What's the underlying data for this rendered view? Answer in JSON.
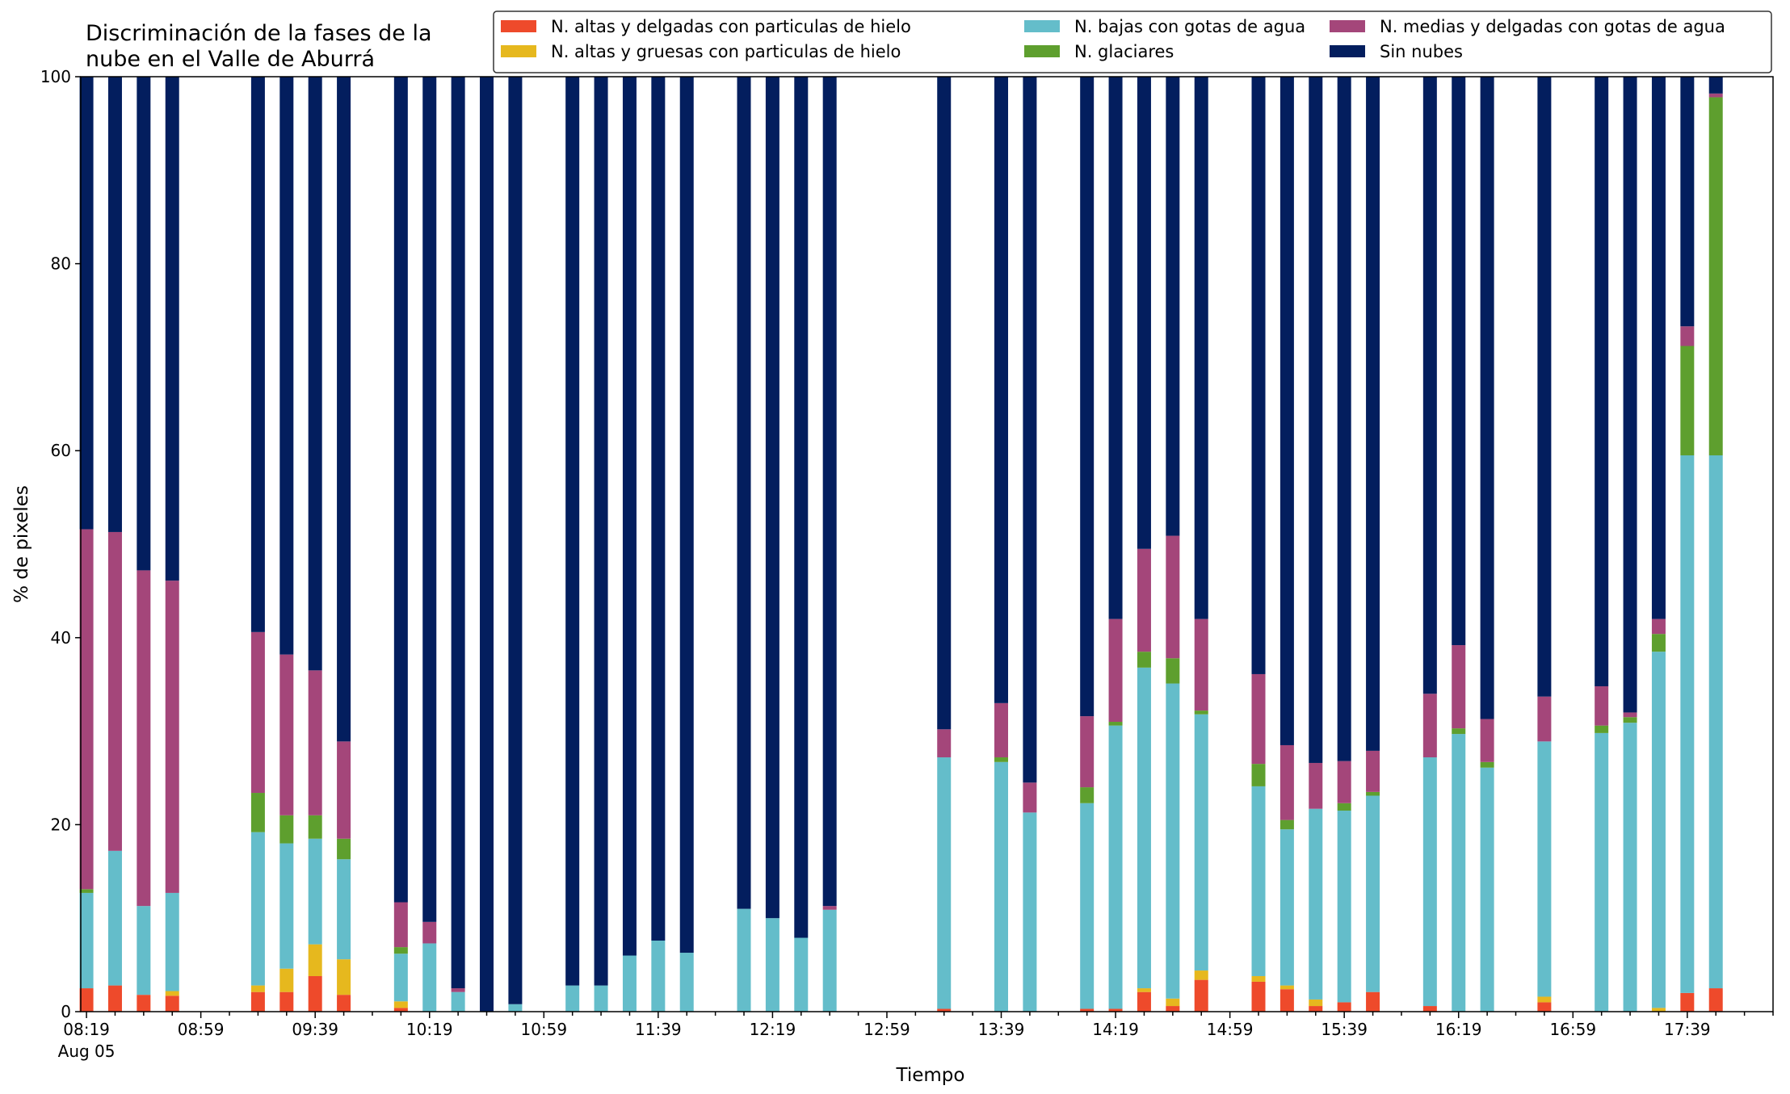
{
  "chart_data": {
    "type": "bar",
    "stacked": true,
    "title_lines": [
      "Discriminación de la fases de la",
      "nube en el Valle de Aburrá"
    ],
    "xlabel": "Tiempo",
    "ylabel": "% de pixeles",
    "ylim": [
      0,
      100
    ],
    "yticks": [
      "0",
      "20",
      "40",
      "60",
      "80",
      "100"
    ],
    "grid": false,
    "legend_placement": "top-right",
    "xlim_minutes": [
      -2,
      590
    ],
    "xticks": [
      {
        "minute": 0,
        "label": "08:19",
        "sublabel": "Aug 05"
      },
      {
        "minute": 40,
        "label": "08:59"
      },
      {
        "minute": 80,
        "label": "09:39"
      },
      {
        "minute": 120,
        "label": "10:19"
      },
      {
        "minute": 160,
        "label": "10:59"
      },
      {
        "minute": 200,
        "label": "11:39"
      },
      {
        "minute": 240,
        "label": "12:19"
      },
      {
        "minute": 280,
        "label": "12:59"
      },
      {
        "minute": 320,
        "label": "13:39"
      },
      {
        "minute": 360,
        "label": "14:19"
      },
      {
        "minute": 400,
        "label": "14:59"
      },
      {
        "minute": 440,
        "label": "15:39"
      },
      {
        "minute": 480,
        "label": "16:19"
      },
      {
        "minute": 520,
        "label": "16:59"
      },
      {
        "minute": 560,
        "label": "17:39"
      }
    ],
    "series": [
      {
        "name": "N. altas y delgadas con particulas de hielo",
        "color": "#ee4a2b"
      },
      {
        "name": "N. altas y gruesas con particulas de hielo",
        "color": "#e6b81e"
      },
      {
        "name": "N. bajas con gotas de agua",
        "color": "#64bdca"
      },
      {
        "name": "N. glaciares",
        "color": "#5e9f2e"
      },
      {
        "name": "N. medias y delgadas con gotas de agua",
        "color": "#a4467a"
      },
      {
        "name": "Sin nubes",
        "color": "#031e5e"
      }
    ],
    "bars": [
      {
        "time": "08:19",
        "minute": 0,
        "values": [
          2.5,
          0.0,
          10.2,
          0.4,
          38.5,
          48.4
        ]
      },
      {
        "time": "08:29",
        "minute": 10,
        "values": [
          2.8,
          0.0,
          14.4,
          0.0,
          34.1,
          48.7
        ]
      },
      {
        "time": "08:39",
        "minute": 20,
        "values": [
          1.8,
          0.0,
          9.5,
          0.0,
          35.9,
          52.8
        ]
      },
      {
        "time": "08:49",
        "minute": 30,
        "values": [
          1.7,
          0.5,
          10.5,
          0.0,
          33.4,
          53.9
        ]
      },
      {
        "time": "09:19",
        "minute": 60,
        "values": [
          2.1,
          0.7,
          16.4,
          4.2,
          17.2,
          59.4
        ]
      },
      {
        "time": "09:29",
        "minute": 70,
        "values": [
          2.1,
          2.5,
          13.4,
          3.0,
          17.2,
          61.8
        ]
      },
      {
        "time": "09:39",
        "minute": 80,
        "values": [
          3.8,
          3.4,
          11.3,
          2.5,
          15.5,
          63.5
        ]
      },
      {
        "time": "09:49",
        "minute": 90,
        "values": [
          1.8,
          3.8,
          10.7,
          2.2,
          10.4,
          71.1
        ]
      },
      {
        "time": "10:09",
        "minute": 110,
        "values": [
          0.4,
          0.7,
          5.1,
          0.7,
          4.8,
          88.3
        ]
      },
      {
        "time": "10:19",
        "minute": 120,
        "values": [
          0.0,
          0.0,
          7.3,
          0.0,
          2.3,
          90.4
        ]
      },
      {
        "time": "10:29",
        "minute": 130,
        "values": [
          0.0,
          0.0,
          2.1,
          0.0,
          0.4,
          97.5
        ]
      },
      {
        "time": "10:39",
        "minute": 140,
        "values": [
          0.0,
          0.0,
          0.0,
          0.0,
          0.0,
          100.0
        ]
      },
      {
        "time": "10:49",
        "minute": 150,
        "values": [
          0.0,
          0.0,
          0.8,
          0.0,
          0.0,
          99.2
        ]
      },
      {
        "time": "11:09",
        "minute": 170,
        "values": [
          0.0,
          0.0,
          2.8,
          0.0,
          0.0,
          97.2
        ]
      },
      {
        "time": "11:19",
        "minute": 180,
        "values": [
          0.0,
          0.0,
          2.8,
          0.0,
          0.0,
          97.2
        ]
      },
      {
        "time": "11:29",
        "minute": 190,
        "values": [
          0.0,
          0.0,
          6.0,
          0.0,
          0.0,
          94.0
        ]
      },
      {
        "time": "11:39",
        "minute": 200,
        "values": [
          0.0,
          0.0,
          7.6,
          0.0,
          0.0,
          92.4
        ]
      },
      {
        "time": "11:49",
        "minute": 210,
        "values": [
          0.0,
          0.0,
          6.3,
          0.0,
          0.0,
          93.7
        ]
      },
      {
        "time": "12:09",
        "minute": 230,
        "values": [
          0.0,
          0.0,
          11.0,
          0.0,
          0.0,
          89.0
        ]
      },
      {
        "time": "12:19",
        "minute": 240,
        "values": [
          0.0,
          0.0,
          10.0,
          0.0,
          0.0,
          90.0
        ]
      },
      {
        "time": "12:29",
        "minute": 250,
        "values": [
          0.0,
          0.0,
          7.9,
          0.0,
          0.0,
          92.1
        ]
      },
      {
        "time": "12:39",
        "minute": 260,
        "values": [
          0.0,
          0.0,
          10.9,
          0.0,
          0.4,
          88.7
        ]
      },
      {
        "time": "13:19",
        "minute": 300,
        "values": [
          0.3,
          0.0,
          26.9,
          0.0,
          3.0,
          69.8
        ]
      },
      {
        "time": "13:39",
        "minute": 320,
        "values": [
          0.0,
          0.0,
          26.7,
          0.5,
          5.8,
          67.0
        ]
      },
      {
        "time": "13:49",
        "minute": 330,
        "values": [
          0.0,
          0.0,
          21.3,
          0.0,
          3.2,
          75.5
        ]
      },
      {
        "time": "14:09",
        "minute": 350,
        "values": [
          0.3,
          0.0,
          22.0,
          1.7,
          7.6,
          68.4
        ]
      },
      {
        "time": "14:19",
        "minute": 360,
        "values": [
          0.3,
          0.0,
          30.3,
          0.4,
          11.0,
          58.0
        ]
      },
      {
        "time": "14:29",
        "minute": 370,
        "values": [
          2.1,
          0.4,
          34.3,
          1.7,
          11.0,
          50.5
        ]
      },
      {
        "time": "14:39",
        "minute": 380,
        "values": [
          0.6,
          0.8,
          33.7,
          2.7,
          13.1,
          49.1
        ]
      },
      {
        "time": "14:49",
        "minute": 390,
        "values": [
          3.4,
          1.0,
          27.4,
          0.4,
          9.8,
          58.0
        ]
      },
      {
        "time": "15:09",
        "minute": 410,
        "values": [
          3.2,
          0.6,
          20.3,
          2.4,
          9.6,
          63.9
        ]
      },
      {
        "time": "15:19",
        "minute": 420,
        "values": [
          2.4,
          0.4,
          16.7,
          1.0,
          8.0,
          71.5
        ]
      },
      {
        "time": "15:29",
        "minute": 430,
        "values": [
          0.6,
          0.7,
          20.4,
          0.0,
          4.9,
          73.4
        ]
      },
      {
        "time": "15:39",
        "minute": 440,
        "values": [
          1.0,
          0.0,
          20.5,
          0.8,
          4.5,
          73.2
        ]
      },
      {
        "time": "15:49",
        "minute": 450,
        "values": [
          2.1,
          0.0,
          21.0,
          0.4,
          4.4,
          72.1
        ]
      },
      {
        "time": "16:09",
        "minute": 470,
        "values": [
          0.6,
          0.0,
          26.6,
          0.0,
          6.8,
          66.0
        ]
      },
      {
        "time": "16:19",
        "minute": 480,
        "values": [
          0.0,
          0.0,
          29.7,
          0.6,
          8.9,
          60.8
        ]
      },
      {
        "time": "16:29",
        "minute": 490,
        "values": [
          0.0,
          0.0,
          26.1,
          0.6,
          4.6,
          68.7
        ]
      },
      {
        "time": "16:49",
        "minute": 510,
        "values": [
          1.0,
          0.6,
          27.3,
          0.0,
          4.8,
          66.3
        ]
      },
      {
        "time": "17:09",
        "minute": 530,
        "values": [
          0.0,
          0.0,
          29.8,
          0.8,
          4.2,
          65.2
        ]
      },
      {
        "time": "17:19",
        "minute": 540,
        "values": [
          0.0,
          0.0,
          30.9,
          0.6,
          0.5,
          68.0
        ]
      },
      {
        "time": "17:29",
        "minute": 550,
        "values": [
          0.0,
          0.4,
          38.1,
          1.9,
          1.6,
          58.0
        ]
      },
      {
        "time": "17:39",
        "minute": 560,
        "values": [
          2.0,
          0.0,
          57.5,
          11.7,
          2.1,
          26.7
        ]
      },
      {
        "time": "17:49",
        "minute": 570,
        "values": [
          2.5,
          0.0,
          57.0,
          38.3,
          0.4,
          1.8
        ]
      }
    ]
  }
}
